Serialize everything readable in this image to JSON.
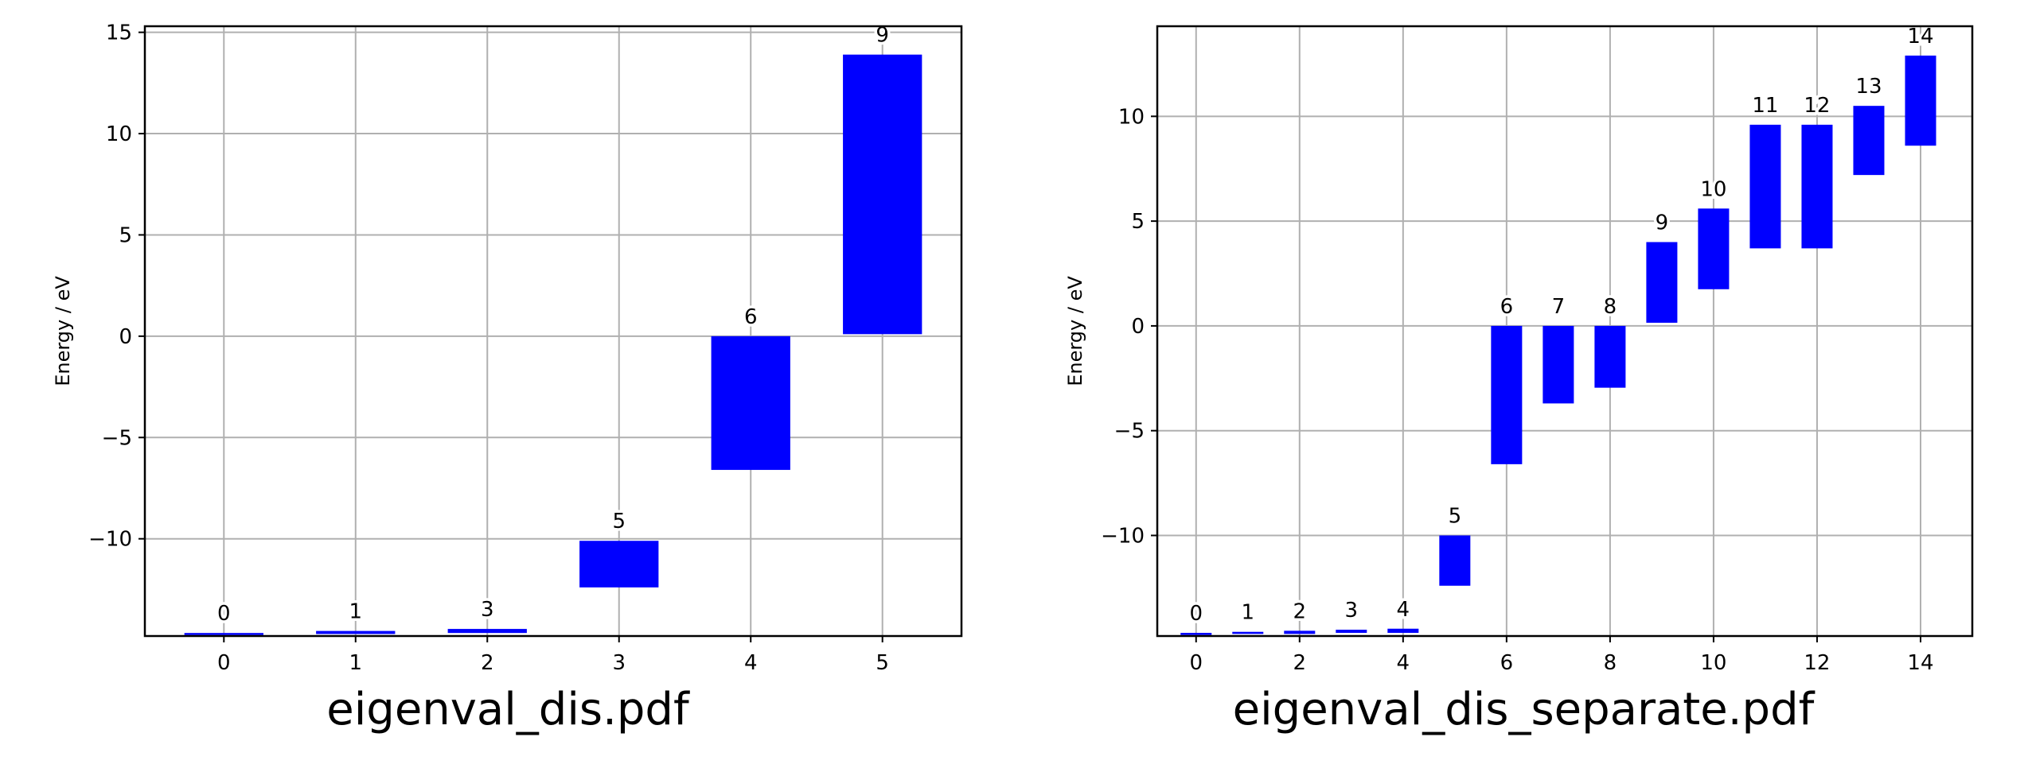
{
  "chart_data": [
    {
      "type": "bar",
      "caption": "eigenval_dis.pdf",
      "ylabel": "Energy / eV",
      "xlabel": "",
      "xlim": [
        -0.6,
        5.6
      ],
      "ylim": [
        -14.8,
        15.3
      ],
      "xticks": [
        0,
        1,
        2,
        3,
        4,
        5
      ],
      "yticks": [
        -10,
        -5,
        0,
        5,
        10,
        15
      ],
      "grid": true,
      "bar_width": 0.6,
      "bar_color": "#0000ff",
      "bars": [
        {
          "x": 0,
          "bottom": -14.75,
          "top": -14.65,
          "label": "0"
        },
        {
          "x": 1,
          "bottom": -14.7,
          "top": -14.55,
          "label": "1"
        },
        {
          "x": 2,
          "bottom": -14.65,
          "top": -14.45,
          "label": "3"
        },
        {
          "x": 3,
          "bottom": -12.4,
          "top": -10.1,
          "label": "5"
        },
        {
          "x": 4,
          "bottom": -6.6,
          "top": 0.0,
          "label": "6"
        },
        {
          "x": 5,
          "bottom": 0.1,
          "top": 13.9,
          "label": "9"
        }
      ]
    },
    {
      "type": "bar",
      "caption": "eigenval_dis_separate.pdf",
      "ylabel": "Energy / eV",
      "xlabel": "",
      "xlim": [
        -0.75,
        15.0
      ],
      "ylim": [
        -14.8,
        14.3
      ],
      "xticks": [
        0,
        2,
        4,
        6,
        8,
        10,
        12,
        14
      ],
      "yticks": [
        -10,
        -5,
        0,
        5,
        10
      ],
      "grid": true,
      "bar_width": 0.6,
      "bar_color": "#0000ff",
      "bars": [
        {
          "x": 0,
          "bottom": -14.75,
          "top": -14.65,
          "label": "0"
        },
        {
          "x": 1,
          "bottom": -14.7,
          "top": -14.6,
          "label": "1"
        },
        {
          "x": 2,
          "bottom": -14.7,
          "top": -14.55,
          "label": "2"
        },
        {
          "x": 3,
          "bottom": -14.65,
          "top": -14.5,
          "label": "3"
        },
        {
          "x": 4,
          "bottom": -14.65,
          "top": -14.45,
          "label": "4"
        },
        {
          "x": 5,
          "bottom": -12.4,
          "top": -10.0,
          "label": "5"
        },
        {
          "x": 6,
          "bottom": -6.6,
          "top": 0.0,
          "label": "6"
        },
        {
          "x": 7,
          "bottom": -3.7,
          "top": 0.0,
          "label": "7"
        },
        {
          "x": 8,
          "bottom": -2.95,
          "top": 0.0,
          "label": "8"
        },
        {
          "x": 9,
          "bottom": 0.15,
          "top": 4.0,
          "label": "9"
        },
        {
          "x": 10,
          "bottom": 1.75,
          "top": 5.6,
          "label": "10"
        },
        {
          "x": 11,
          "bottom": 3.7,
          "top": 9.6,
          "label": "11"
        },
        {
          "x": 12,
          "bottom": 3.7,
          "top": 9.6,
          "label": "12"
        },
        {
          "x": 13,
          "bottom": 7.2,
          "top": 10.5,
          "label": "13"
        },
        {
          "x": 14,
          "bottom": 8.6,
          "top": 12.9,
          "label": "14"
        }
      ]
    }
  ]
}
